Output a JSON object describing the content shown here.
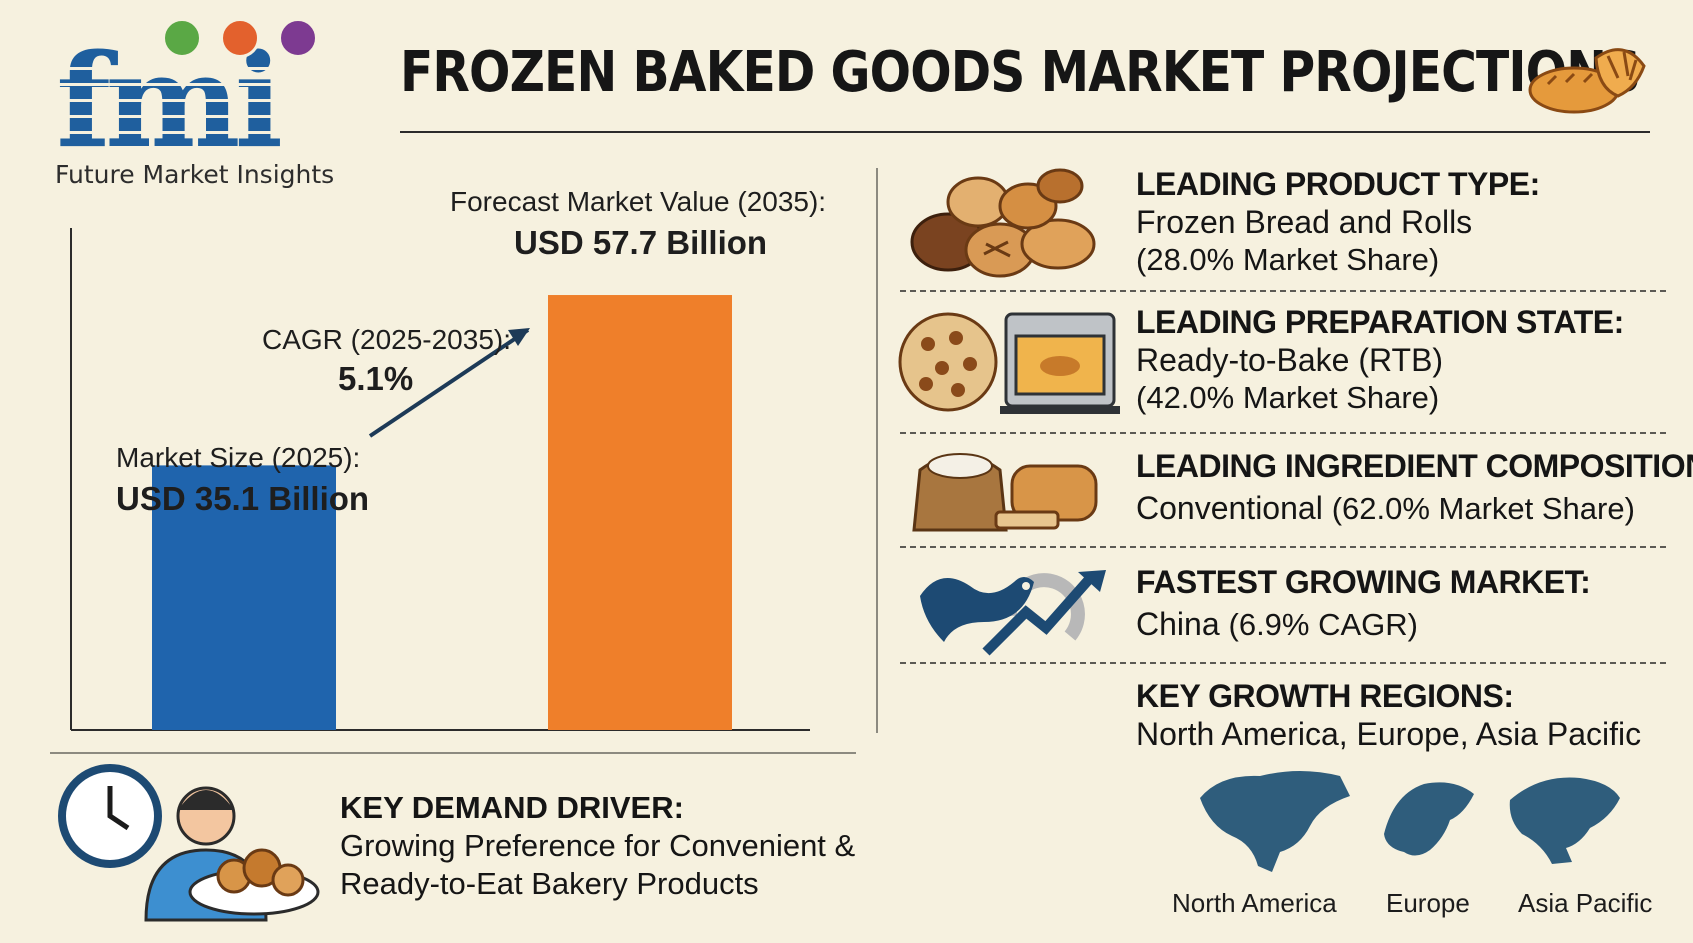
{
  "logo": {
    "letters": "fmi",
    "company": "Future Market Insights"
  },
  "title": "FROZEN BAKED GOODS MARKET PROJECTIONS",
  "chart_data": {
    "type": "bar",
    "categories": [
      "2025",
      "2035"
    ],
    "values": [
      35.1,
      57.7
    ],
    "colors": [
      "#1f64ad",
      "#ef7f2a"
    ],
    "ylim": [
      0,
      65
    ],
    "grid": false,
    "annotations": {
      "market_size_label": "Market Size (2025):",
      "market_size_value": "USD 35.1 Billion",
      "cagr_label": "CAGR (2025-2035):",
      "cagr_value": "5.1%",
      "forecast_label": "Forecast Market Value (2035):",
      "forecast_value": "USD 57.7 Billion"
    }
  },
  "segments": {
    "product_type": {
      "heading": "LEADING PRODUCT TYPE:",
      "value": "Frozen Bread and Rolls",
      "share": "(28.0% Market Share)",
      "icon": "bread-basket-icon"
    },
    "preparation_state": {
      "heading": "LEADING PREPARATION STATE:",
      "value": "Ready-to-Bake (RTB)",
      "share": "(42.0% Market Share)",
      "icon": "oven-icon"
    },
    "ingredient": {
      "heading": "LEADING INGREDIENT COMPOSITION:",
      "value": "Conventional",
      "share": "(62.0% Market Share)",
      "icon": "flour-sack-icon"
    },
    "fastest_market": {
      "heading": "FASTEST GROWING MARKET:",
      "value": "China",
      "share": "(6.9% CAGR)",
      "icon": "dragon-growth-icon"
    },
    "regions": {
      "heading": "KEY GROWTH REGIONS:",
      "value": "North America, Europe, Asia Pacific",
      "labels": [
        "North America",
        "Europe",
        "Asia Pacific"
      ]
    }
  },
  "driver": {
    "heading": "KEY DEMAND DRIVER:",
    "line1": "Growing Preference for Convenient &",
    "line2": "Ready-to-Eat Bakery Products"
  },
  "colors": {
    "background": "#f6f1df",
    "blue": "#1f64ad",
    "orange": "#ef7f2a",
    "navy": "#1d4a73"
  }
}
